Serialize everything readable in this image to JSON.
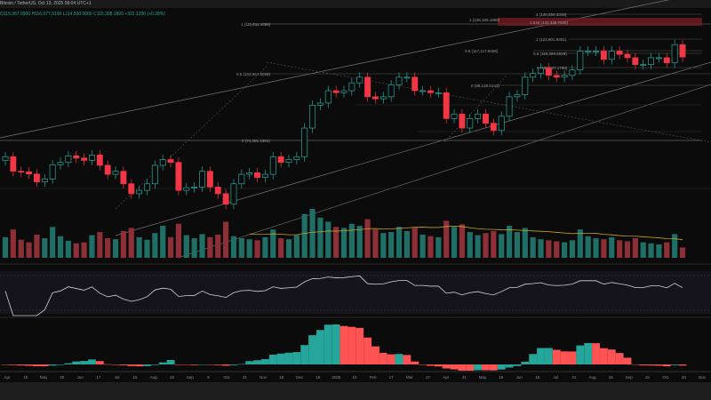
{
  "header": {
    "title": "Bitcoin / TetherUS, Oct 13, 2025 09:04 UTC+1",
    "ohlc": "O115,367.9900 H116,077.5100 L114,500.0000 C115,398.1800 +322.1200 (+0.28%)"
  },
  "colors": {
    "bull": "#26a69a",
    "bear": "#f23645",
    "vol_bull": "#1f6f66",
    "vol_bear": "#8c2f36",
    "vol_ma": "#c9a227",
    "rsi": "#d1d4dc",
    "macd_bull": "#26a69a",
    "macd_bear": "#ff5252",
    "fib_zone": "#7a1e24"
  },
  "fib_labels": {
    "top_a": "2 (140,260.3349)",
    "top_b": "1 (126,105.1856)",
    "top_c": "1.618 (133,335.7048)",
    "left_1": "1 (111,611.4098)",
    "left_05": "0.5 (103,967.8085)",
    "left_0": "0 (74,301.1381)",
    "r_1": "1 (123,801.8301)",
    "r_05a": "0.5 (117,117.8406)",
    "r_05b": "0.5 (115,369.4829)",
    "r_0a": "0 (109,237.1758)",
    "r_0b": "0 (98,128.6133)"
  },
  "chart_data": {
    "type": "candlestick",
    "title": "Bitcoin / TetherUS weekly",
    "y_scale": "log",
    "ylim": [
      54000,
      126000
    ],
    "closes": [
      69000,
      64000,
      63800,
      63100,
      60600,
      61500,
      66200,
      67000,
      69300,
      68500,
      67700,
      69600,
      66000,
      63000,
      64000,
      60000,
      57000,
      58000,
      60000,
      66000,
      68000,
      67000,
      58000,
      58800,
      59000,
      64000,
      59000,
      57000,
      54000,
      60000,
      63000,
      63500,
      62000,
      63000,
      69000,
      67000,
      68000,
      69000,
      80000,
      90000,
      91000,
      97000,
      96000,
      97000,
      101000,
      104000,
      94000,
      93000,
      94000,
      100000,
      104000,
      104000,
      97000,
      97000,
      96000,
      96000,
      84000,
      86000,
      80000,
      84000,
      86000,
      82000,
      79000,
      85000,
      94000,
      95000,
      104000,
      106000,
      109000,
      105000,
      104000,
      105000,
      108000,
      119000,
      119000,
      119000,
      114000,
      119000,
      117000,
      115000,
      111000,
      111000,
      115000,
      115000,
      112000,
      123000,
      115398
    ],
    "volumes": [
      40,
      55,
      35,
      30,
      45,
      38,
      60,
      42,
      33,
      28,
      30,
      44,
      50,
      38,
      36,
      52,
      58,
      40,
      35,
      48,
      62,
      40,
      66,
      44,
      38,
      46,
      40,
      45,
      70,
      42,
      38,
      36,
      34,
      40,
      55,
      38,
      36,
      44,
      85,
      95,
      78,
      70,
      60,
      58,
      66,
      62,
      75,
      55,
      48,
      50,
      60,
      52,
      58,
      45,
      42,
      40,
      72,
      60,
      65,
      50,
      44,
      48,
      52,
      46,
      62,
      50,
      58,
      40,
      36,
      34,
      32,
      30,
      34,
      55,
      42,
      38,
      36,
      40,
      34,
      32,
      38,
      30,
      28,
      26,
      30,
      46,
      20
    ],
    "rsi_range": [
      0,
      100
    ],
    "macd": "histogram",
    "x_labels": [
      "Apr",
      "15",
      "May",
      "20",
      "Jun",
      "17",
      "Jul",
      "15",
      "Aug",
      "19",
      "Sep",
      "9",
      "Oct",
      "21",
      "Nov",
      "18",
      "Dec",
      "16",
      "2025",
      "10",
      "Feb",
      "17",
      "Mar",
      "17",
      "Apr",
      "21",
      "May",
      "19",
      "Jun",
      "16",
      "Jul",
      "21",
      "Aug",
      "18",
      "Sep",
      "15",
      "Oct",
      "20",
      "Nov"
    ]
  }
}
